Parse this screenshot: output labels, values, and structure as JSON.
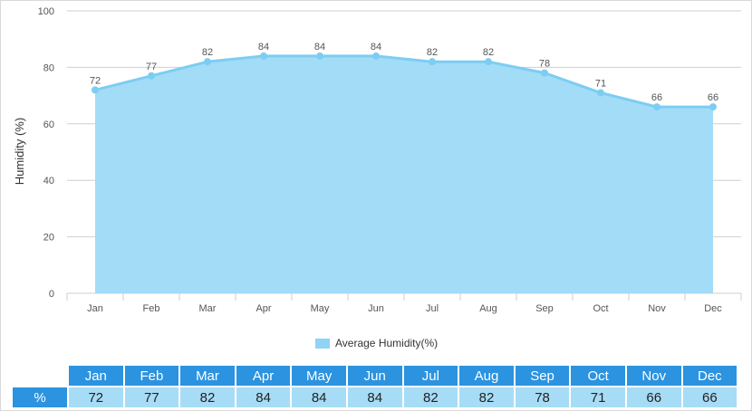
{
  "colors": {
    "area_fill": "#a3dcf7",
    "line": "#7ccdf2",
    "grid": "#cfcfcf",
    "header_bg": "#2b93e0",
    "cell_bg": "#a7dcf6",
    "legend_swatch": "#8fd3f5"
  },
  "chart_data": {
    "type": "area",
    "categories": [
      "Jan",
      "Feb",
      "Mar",
      "Apr",
      "May",
      "Jun",
      "Jul",
      "Aug",
      "Sep",
      "Oct",
      "Nov",
      "Dec"
    ],
    "series": [
      {
        "name": "Average Humidity(%)",
        "values": [
          72,
          77,
          82,
          84,
          84,
          84,
          82,
          82,
          78,
          71,
          66,
          66
        ]
      }
    ],
    "title": "",
    "xlabel": "",
    "ylabel": "Humidity (%)",
    "ylim": [
      0,
      100
    ],
    "yticks": [
      0,
      20,
      40,
      60,
      80,
      100
    ],
    "grid": true,
    "data_labels": true,
    "legend_position": "bottom"
  },
  "table": {
    "row_label": "%",
    "months": [
      "Jan",
      "Feb",
      "Mar",
      "Apr",
      "May",
      "Jun",
      "Jul",
      "Aug",
      "Sep",
      "Oct",
      "Nov",
      "Dec"
    ],
    "values": [
      "72",
      "77",
      "82",
      "84",
      "84",
      "84",
      "82",
      "82",
      "78",
      "71",
      "66",
      "66"
    ]
  }
}
